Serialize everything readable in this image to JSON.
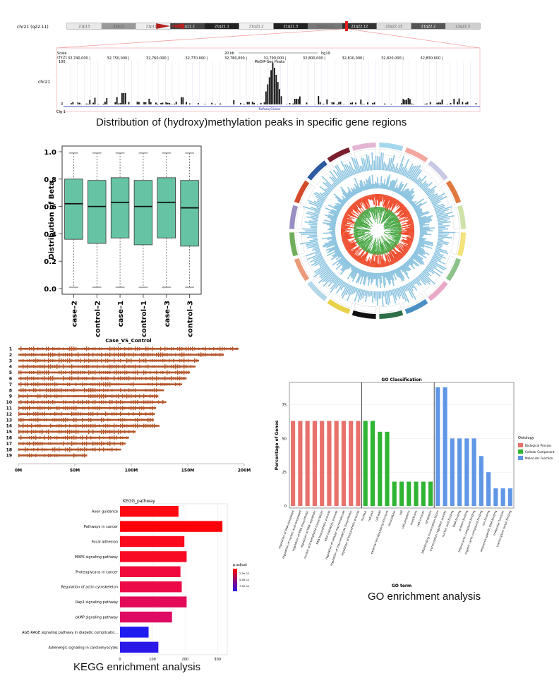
{
  "captions": {
    "genome": "Distribution of (hydroxy)methylation peaks in specific gene regions",
    "kegg": "KEGG enrichment analysis",
    "go": "GO enrichment analysis"
  },
  "genome_browser": {
    "chrom_label": "chr21 (q22.11)",
    "bands": [
      "21p13",
      "21p12",
      "21p11.2",
      "21q11.2",
      "21q21.1",
      "21q21.2",
      "21q21.3",
      "21q22.11",
      "21q22.12",
      "21q22.13",
      "21q22.2",
      "21q22.3"
    ],
    "scale_label": "Scale",
    "chr_label": "chr21",
    "track_label": "chr21",
    "scale_text": "20 kb",
    "genome_text": "hg19",
    "positions": [
      "32,740,000 |",
      "32,750,000 |",
      "32,760,000 |",
      "32,770,000 |",
      "32,780,000 |",
      "32,790,000 |",
      "32,800,000 |",
      "32,810,000 |",
      "32,820,000 |",
      "32,830,000 |"
    ],
    "track_name": "MeDIP-Seq Peaks",
    "gene_label": "Refseq Genes",
    "axis_top": "100",
    "axis_bottom": "0",
    "bottom_label": "Clg 1"
  },
  "chart_data": [
    {
      "type": "box",
      "ylabel": "Distribution of Beta",
      "categories": [
        "case–2",
        "control–2",
        "case–1",
        "control–1",
        "case–3",
        "control–3"
      ],
      "ylim": [
        0,
        1
      ],
      "yticks": [
        "0.0",
        "0.2",
        "0.4",
        "0.6",
        "0.8",
        "1.0"
      ],
      "boxes": [
        {
          "min": 0.01,
          "q1": 0.36,
          "median": 0.62,
          "q3": 0.8,
          "max": 0.99
        },
        {
          "min": 0.01,
          "q1": 0.33,
          "median": 0.6,
          "q3": 0.79,
          "max": 0.99
        },
        {
          "min": 0.01,
          "q1": 0.37,
          "median": 0.63,
          "q3": 0.81,
          "max": 0.99
        },
        {
          "min": 0.01,
          "q1": 0.32,
          "median": 0.6,
          "q3": 0.79,
          "max": 0.99
        },
        {
          "min": 0.01,
          "q1": 0.37,
          "median": 0.63,
          "q3": 0.81,
          "max": 0.99
        },
        {
          "min": 0.01,
          "q1": 0.31,
          "median": 0.59,
          "q3": 0.79,
          "max": 0.99
        }
      ],
      "color": "#66c4a4"
    },
    {
      "type": "circos",
      "ring_colors": [
        "#a4d8ec",
        "#f2a6a0",
        "#c9c9e6",
        "#e07840",
        "#cfe3a8",
        "#f4e27a",
        "#8bc38a",
        "#e8a9c6",
        "#4a90c4",
        "#2d6f46",
        "#111111",
        "#e8d24a",
        "#b4d7e9",
        "#eb9b7a",
        "#6fae5a",
        "#9a8fc4",
        "#d44b2c",
        "#2d5aa0",
        "#7a1f2e",
        "#e4b4d4"
      ],
      "outer_bar_color": "#8cc4e0",
      "up_color": "#ee4a2a",
      "down_color": "#3ea33a"
    },
    {
      "type": "karyogram",
      "title": "Case_VS_Control",
      "chromosomes": [
        "1",
        "2",
        "3",
        "4",
        "5",
        "6",
        "7",
        "8",
        "9",
        "10",
        "11",
        "12",
        "13",
        "14",
        "15",
        "16",
        "17",
        "18",
        "19"
      ],
      "lengths_mb": [
        195,
        182,
        160,
        157,
        152,
        149,
        145,
        129,
        124,
        131,
        122,
        121,
        120,
        125,
        104,
        98,
        95,
        91,
        61
      ],
      "xticks": [
        "0M",
        "50M",
        "100M",
        "150M",
        "200M"
      ],
      "xlim": [
        0,
        200
      ],
      "color": "#b4572c"
    },
    {
      "type": "bar",
      "title": "GO Classification",
      "xlabel": "GO term",
      "ylabel": "Percentage of Genes",
      "ylim": [
        0,
        90
      ],
      "yticks": [
        "0",
        "25",
        "50",
        "75"
      ],
      "legend_title": "Ontology",
      "series": [
        {
          "name": "Biological Process",
          "color": "#e8716b",
          "categories": [
            "regulation of DNA-templated",
            "regulation of nucleic acid-templated",
            "regulation of RNA biosynthetic",
            "regulation of RNA metabolic",
            "nucleic acid-templated transcription",
            "RNA biosynthetic process",
            "RNA metabolic process",
            "regulation of cellular macromolecule",
            "regulation of macromolecule biosynthetic",
            "regulation of biosynthetic process"
          ],
          "values": [
            63,
            63,
            63,
            63,
            63,
            63,
            63,
            63,
            63,
            63
          ]
        },
        {
          "name": "Cellular Component",
          "color": "#2fb433",
          "categories": [
            "nucleus",
            "cell part",
            "cell wall",
            "external encapsulating structure",
            "intracellular",
            "cell",
            "cell periphery",
            "membrane",
            "cell junction",
            "cytoplasm"
          ],
          "values": [
            63,
            63,
            55,
            55,
            18,
            18,
            18,
            18,
            18,
            18
          ]
        },
        {
          "name": "Molecular Function",
          "color": "#5f96e6",
          "categories": [
            "DNA-binding transcription factor",
            "transcription regulator activity",
            "nucleic acid binding",
            "DNA binding",
            "protein binding",
            "heterocyclic compound binding",
            "organic cyclic compound binding",
            "ion binding",
            "sequence-specific DNA binding",
            "molecular function",
            "transcription factor binding"
          ],
          "values": [
            88,
            88,
            50,
            50,
            50,
            50,
            37,
            25,
            13,
            13,
            13
          ]
        }
      ]
    },
    {
      "type": "bar",
      "orientation": "horizontal",
      "title": "KEGG_pathway",
      "legend_title": "p.adjust",
      "legend_ticks": [
        "2.5e-11",
        "5.0e-11",
        "7.5e-11"
      ],
      "xticks": [
        "0",
        "100",
        "200",
        "300"
      ],
      "xlim": [
        0,
        330
      ],
      "categories": [
        "Axon guidance",
        "Pathways in cancer",
        "Focal adhesion",
        "MAPK signaling pathway",
        "Proteoglycans in cancer",
        "Regulation of actin cytoskeleton",
        "Rap1 signaling pathway",
        "cAMP signaling pathway",
        "AGE-RAGE signaling pathway in diabetic complicatio...",
        "Adrenergic signaling in cardiomyocytes"
      ],
      "values": [
        180,
        315,
        198,
        205,
        186,
        190,
        205,
        160,
        88,
        118
      ],
      "colors": [
        "#ff0a10",
        "#ff0008",
        "#fa0a1c",
        "#f80a24",
        "#f00b3c",
        "#ec0b48",
        "#e40a5a",
        "#de0a64",
        "#1f1cef",
        "#2a18e8"
      ]
    }
  ]
}
